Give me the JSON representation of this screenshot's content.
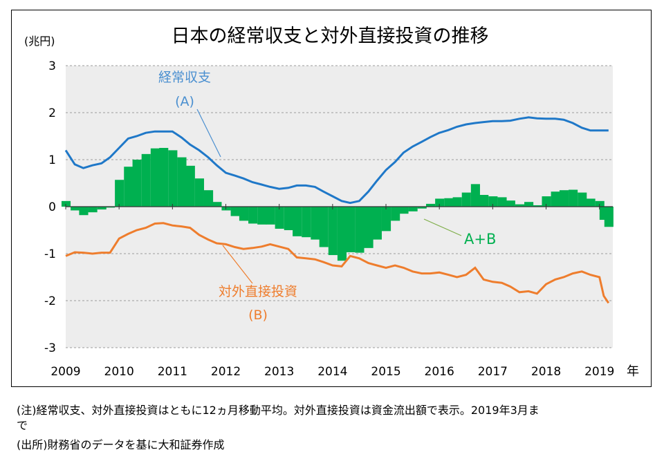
{
  "chart_data": {
    "type": "line",
    "title": "日本の経常収支と対外直接投資の推移",
    "ylabel": "(兆円)",
    "xlabel": "年",
    "ylim": [
      -3,
      3
    ],
    "yticks": [
      "3",
      "2",
      "1",
      "0",
      "-1",
      "-2",
      "-3"
    ],
    "ytick_values": [
      3,
      2,
      1,
      0,
      -1,
      -2,
      -3
    ],
    "xlim": [
      2009,
      2019.25
    ],
    "xticks": [
      "2009",
      "2010",
      "2011",
      "2012",
      "2013",
      "2014",
      "2015",
      "2016",
      "2017",
      "2018",
      "2019"
    ],
    "xtick_values": [
      2009,
      2010,
      2011,
      2012,
      2013,
      2014,
      2015,
      2016,
      2017,
      2018,
      2019
    ],
    "grid": true,
    "series": [
      {
        "name": "経常収支",
        "label_line1": "経常収支",
        "label_line2": "(A)",
        "type": "line",
        "color": "#1f78c8",
        "x": [
          2009.0,
          2009.17,
          2009.33,
          2009.5,
          2009.67,
          2009.83,
          2010.0,
          2010.17,
          2010.33,
          2010.5,
          2010.67,
          2010.83,
          2011.0,
          2011.17,
          2011.33,
          2011.5,
          2011.67,
          2011.83,
          2012.0,
          2012.17,
          2012.33,
          2012.5,
          2012.67,
          2012.83,
          2013.0,
          2013.17,
          2013.33,
          2013.5,
          2013.67,
          2013.83,
          2014.0,
          2014.17,
          2014.33,
          2014.5,
          2014.67,
          2014.83,
          2015.0,
          2015.17,
          2015.33,
          2015.5,
          2015.67,
          2015.83,
          2016.0,
          2016.17,
          2016.33,
          2016.5,
          2016.67,
          2016.83,
          2017.0,
          2017.17,
          2017.33,
          2017.5,
          2017.67,
          2017.83,
          2018.0,
          2018.17,
          2018.33,
          2018.5,
          2018.67,
          2018.83,
          2019.0,
          2019.17
        ],
        "values": [
          1.2,
          0.9,
          0.82,
          0.88,
          0.92,
          1.05,
          1.25,
          1.45,
          1.5,
          1.57,
          1.6,
          1.6,
          1.6,
          1.47,
          1.32,
          1.2,
          1.05,
          0.88,
          0.72,
          0.66,
          0.6,
          0.52,
          0.47,
          0.42,
          0.38,
          0.4,
          0.45,
          0.45,
          0.42,
          0.32,
          0.22,
          0.12,
          0.08,
          0.12,
          0.32,
          0.55,
          0.78,
          0.95,
          1.15,
          1.28,
          1.38,
          1.48,
          1.57,
          1.63,
          1.7,
          1.75,
          1.78,
          1.8,
          1.82,
          1.82,
          1.83,
          1.87,
          1.9,
          1.88,
          1.87,
          1.87,
          1.85,
          1.78,
          1.68,
          1.62,
          1.62,
          1.62
        ]
      },
      {
        "name": "対外直接投資",
        "label_line1": "対外直接投資",
        "label_line2": "(B)",
        "type": "line",
        "color": "#ee7d2d",
        "x": [
          2009.0,
          2009.17,
          2009.33,
          2009.5,
          2009.67,
          2009.83,
          2010.0,
          2010.17,
          2010.33,
          2010.5,
          2010.67,
          2010.83,
          2011.0,
          2011.17,
          2011.33,
          2011.5,
          2011.67,
          2011.83,
          2012.0,
          2012.17,
          2012.33,
          2012.5,
          2012.67,
          2012.83,
          2013.0,
          2013.17,
          2013.33,
          2013.5,
          2013.67,
          2013.83,
          2014.0,
          2014.17,
          2014.33,
          2014.5,
          2014.67,
          2014.83,
          2015.0,
          2015.17,
          2015.33,
          2015.5,
          2015.67,
          2015.83,
          2016.0,
          2016.17,
          2016.33,
          2016.5,
          2016.67,
          2016.83,
          2017.0,
          2017.17,
          2017.33,
          2017.5,
          2017.67,
          2017.83,
          2018.0,
          2018.17,
          2018.33,
          2018.5,
          2018.67,
          2018.83,
          2019.0,
          2019.08,
          2019.17
        ],
        "values": [
          -1.05,
          -0.97,
          -0.98,
          -1.0,
          -0.98,
          -0.98,
          -0.68,
          -0.58,
          -0.5,
          -0.45,
          -0.36,
          -0.35,
          -0.4,
          -0.42,
          -0.45,
          -0.6,
          -0.7,
          -0.78,
          -0.8,
          -0.86,
          -0.9,
          -0.88,
          -0.85,
          -0.8,
          -0.85,
          -0.9,
          -1.08,
          -1.1,
          -1.12,
          -1.18,
          -1.25,
          -1.27,
          -1.05,
          -1.1,
          -1.2,
          -1.25,
          -1.3,
          -1.25,
          -1.3,
          -1.38,
          -1.42,
          -1.42,
          -1.4,
          -1.45,
          -1.5,
          -1.45,
          -1.3,
          -1.55,
          -1.6,
          -1.62,
          -1.7,
          -1.82,
          -1.8,
          -1.85,
          -1.65,
          -1.55,
          -1.5,
          -1.42,
          -1.38,
          -1.45,
          -1.5,
          -1.9,
          -2.05
        ]
      },
      {
        "name": "A+B",
        "label_line1": "A+B",
        "type": "bar",
        "color": "#00b050",
        "x": [
          2009.0,
          2009.17,
          2009.33,
          2009.5,
          2009.67,
          2009.83,
          2010.0,
          2010.17,
          2010.33,
          2010.5,
          2010.67,
          2010.83,
          2011.0,
          2011.17,
          2011.33,
          2011.5,
          2011.67,
          2011.83,
          2012.0,
          2012.17,
          2012.33,
          2012.5,
          2012.67,
          2012.83,
          2013.0,
          2013.17,
          2013.33,
          2013.5,
          2013.67,
          2013.83,
          2014.0,
          2014.17,
          2014.33,
          2014.5,
          2014.67,
          2014.83,
          2015.0,
          2015.17,
          2015.33,
          2015.5,
          2015.67,
          2015.83,
          2016.0,
          2016.17,
          2016.33,
          2016.5,
          2016.67,
          2016.83,
          2017.0,
          2017.17,
          2017.33,
          2017.5,
          2017.67,
          2017.83,
          2018.0,
          2018.17,
          2018.33,
          2018.5,
          2018.67,
          2018.83,
          2019.0,
          2019.08,
          2019.17
        ],
        "values": [
          0.12,
          -0.08,
          -0.18,
          -0.12,
          -0.06,
          -0.02,
          0.57,
          0.85,
          1.0,
          1.12,
          1.24,
          1.25,
          1.2,
          1.05,
          0.87,
          0.6,
          0.35,
          0.1,
          -0.08,
          -0.2,
          -0.3,
          -0.36,
          -0.38,
          -0.38,
          -0.47,
          -0.5,
          -0.63,
          -0.65,
          -0.7,
          -0.86,
          -1.03,
          -1.15,
          -0.97,
          -0.98,
          -0.88,
          -0.7,
          -0.52,
          -0.3,
          -0.15,
          -0.1,
          -0.04,
          0.06,
          0.17,
          0.18,
          0.2,
          0.3,
          0.48,
          0.25,
          0.22,
          0.2,
          0.13,
          0.05,
          0.1,
          0.03,
          0.22,
          0.32,
          0.35,
          0.36,
          0.3,
          0.17,
          0.12,
          -0.28,
          -0.43
        ]
      }
    ]
  },
  "notes": {
    "note_line1": "(注)経常収支、対外直接投資はともに12ヵ月移動平均。対外直接投資は資金流出額で表示。2019年3月ま",
    "note_line2": "で",
    "source": "(出所)財務省のデータを基に大和証券作成"
  }
}
